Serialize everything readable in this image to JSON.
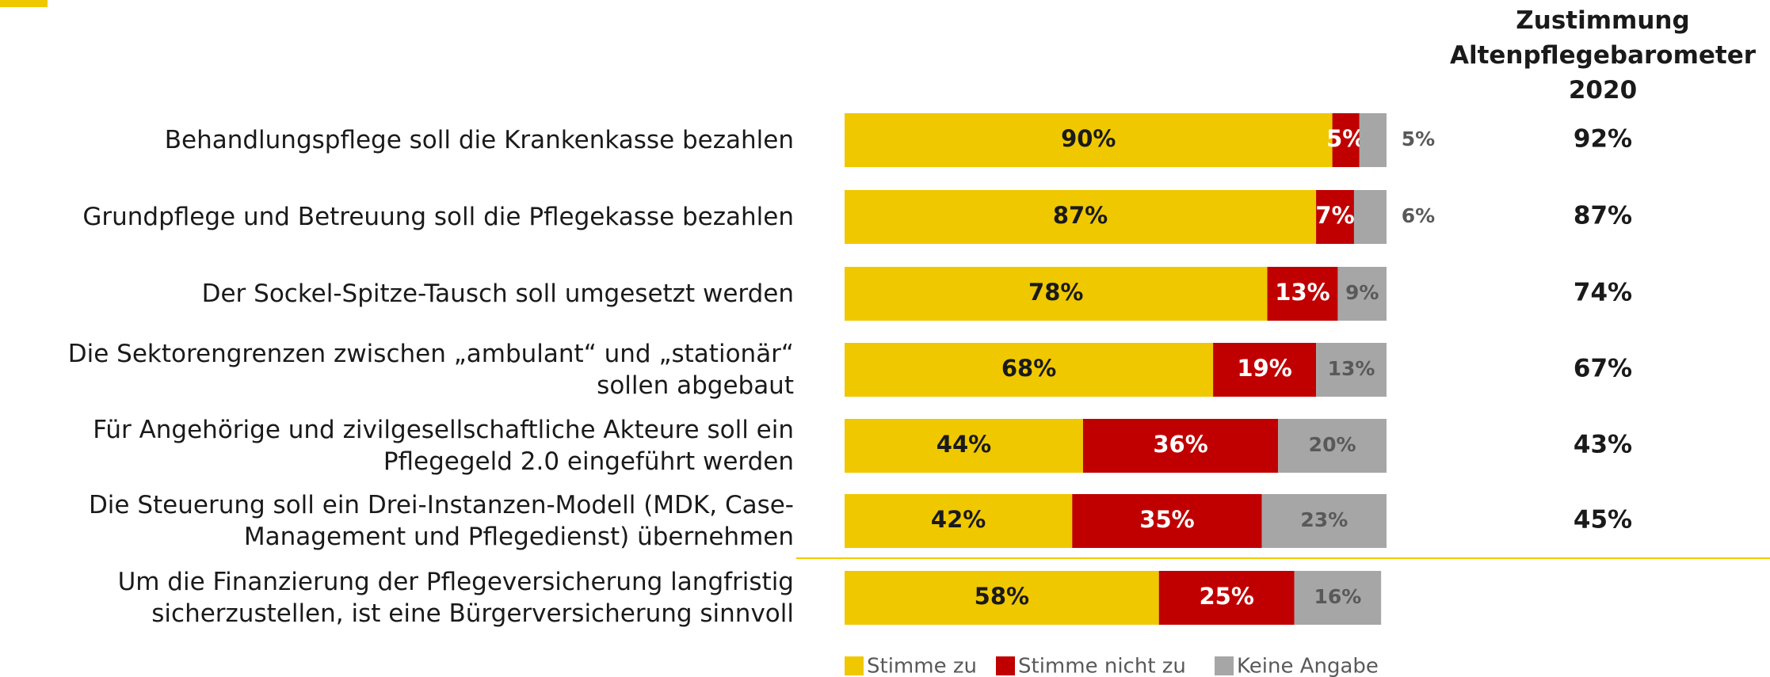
{
  "chart_data": {
    "type": "bar",
    "orientation": "horizontal",
    "stacked": true,
    "categories": [
      "Behandlungspflege soll die Krankenkasse bezahlen",
      "Grundpflege und Betreuung soll die Pflegekasse bezahlen",
      "Der Sockel-Spitze-Tausch soll umgesetzt werden",
      "Die Sektorengrenzen zwischen „ambulant“ und „stationär“\nsollen abgebaut",
      "Für Angehörige und zivilgesellschaftliche Akteure soll ein\nPflegegeld 2.0 eingeführt werden",
      "Die Steuerung soll ein Drei-Instanzen-Modell (MDK, Case-\nManagement und Pflegedienst) übernehmen",
      "Um die Finanzierung der Pflegeversicherung langfristig\nsicherzustellen, ist eine Bürgerversicherung sinnvoll"
    ],
    "series": [
      {
        "name": "Stimme zu",
        "color": "#f0c800",
        "label_color": "#1a1a1a",
        "values": [
          90,
          87,
          78,
          68,
          44,
          42,
          58
        ],
        "value_labels": [
          "90%",
          "87%",
          "78%",
          "68%",
          "44%",
          "42%",
          "58%"
        ]
      },
      {
        "name": "Stimme nicht zu",
        "color": "#c00000",
        "label_color": "#ffffff",
        "values": [
          5,
          7,
          13,
          19,
          36,
          35,
          25
        ],
        "value_labels": [
          "5%",
          "7%",
          "13%",
          "19%",
          "36%",
          "35%",
          "25%"
        ]
      },
      {
        "name": "Keine Angabe",
        "color": "#a6a6a6",
        "label_color": "#595959",
        "values": [
          5,
          6,
          9,
          13,
          20,
          23,
          16
        ],
        "value_labels": [
          "5%",
          "6%",
          "9%",
          "13%",
          "20%",
          "23%",
          "16%"
        ]
      }
    ],
    "xlim": [
      0,
      100
    ],
    "barometer": {
      "title": "Zustimmung\nAltenpflegebarometer\n2020",
      "values": [
        92,
        87,
        74,
        67,
        43,
        45,
        null
      ],
      "value_labels": [
        "92%",
        "87%",
        "74%",
        "67%",
        "43%",
        "45%",
        null
      ]
    }
  }
}
